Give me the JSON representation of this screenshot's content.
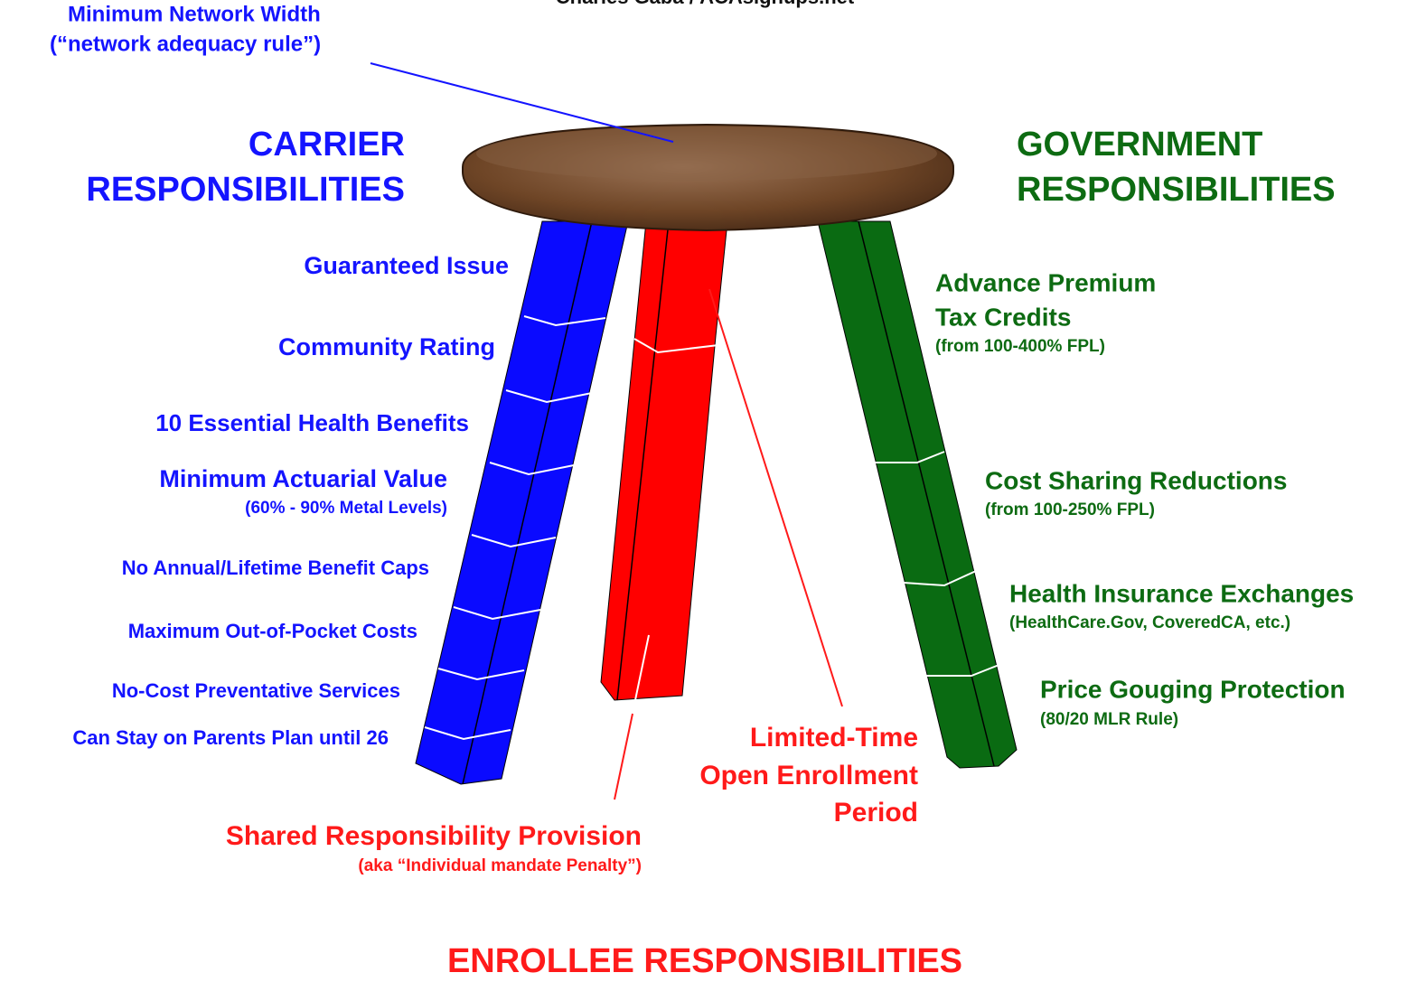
{
  "credit": "Charles Gaba / ACAsignups.net",
  "network_note": {
    "title": "Minimum Network Width",
    "subtitle": "(“network adequacy rule”)"
  },
  "carrier": {
    "heading": [
      "CARRIER",
      "RESPONSIBILITIES"
    ],
    "items": [
      {
        "label": "Guaranteed Issue"
      },
      {
        "label": "Community Rating"
      },
      {
        "label": "10 Essential Health Benefits"
      },
      {
        "label": "Minimum Actuarial Value",
        "sub": "(60% - 90% Metal Levels)"
      },
      {
        "label": "No Annual/Lifetime Benefit Caps"
      },
      {
        "label": "Maximum Out-of-Pocket Costs"
      },
      {
        "label": "No-Cost Preventative Services"
      },
      {
        "label": "Can Stay on Parents Plan until 26"
      }
    ]
  },
  "government": {
    "heading": [
      "GOVERNMENT",
      "RESPONSIBILITIES"
    ],
    "items": [
      {
        "label": [
          "Advance Premium",
          "Tax Credits"
        ],
        "sub": "(from 100-400% FPL)"
      },
      {
        "label": "Cost Sharing Reductions",
        "sub": "(from 100-250% FPL)"
      },
      {
        "label": "Health Insurance Exchanges",
        "sub": "(HealthCare.Gov, CoveredCA, etc.)"
      },
      {
        "label": "Price Gouging Protection",
        "sub": "(80/20 MLR Rule)"
      }
    ]
  },
  "enrollee": {
    "heading": "ENROLLEE RESPONSIBILITIES",
    "items": [
      {
        "label": [
          "Limited-Time",
          "Open Enrollment",
          "Period"
        ]
      },
      {
        "label": "Shared Responsibility Provision",
        "sub": "(aka “Individual mandate Penalty”)"
      }
    ]
  }
}
